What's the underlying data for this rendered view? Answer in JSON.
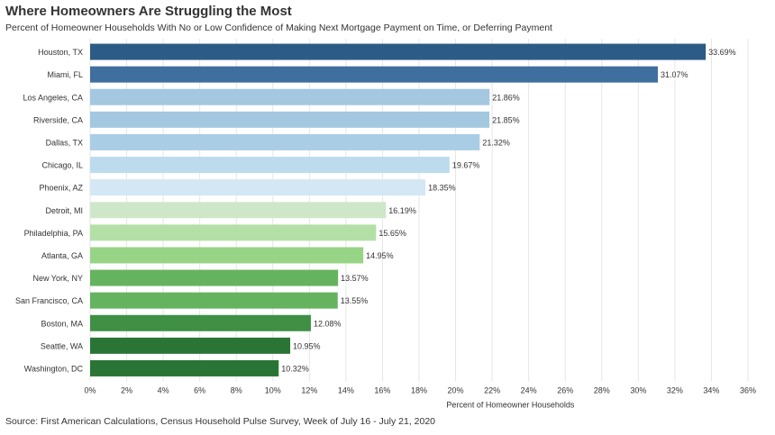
{
  "chart_data": {
    "type": "bar",
    "orientation": "horizontal",
    "title": "Where Homeowners Are Struggling the Most",
    "subtitle": "Percent of Homeowner Households With No or Low Confidence of Making Next Mortgage Payment on Time, or Deferring Payment",
    "xlabel": "Percent of Homeowner Households",
    "ylabel": "",
    "xlim": [
      0,
      36
    ],
    "x_ticks": [
      0,
      2,
      4,
      6,
      8,
      10,
      12,
      14,
      16,
      18,
      20,
      22,
      24,
      26,
      28,
      30,
      32,
      34,
      36
    ],
    "tick_suffix": "%",
    "grid": true,
    "categories": [
      "Houston, TX",
      "Miami, FL",
      "Los Angeles, CA",
      "Riverside, CA",
      "Dallas, TX",
      "Chicago, IL",
      "Phoenix, AZ",
      "Detroit, MI",
      "Philadelphia, PA",
      "Atlanta, GA",
      "New York, NY",
      "San Francisco, CA",
      "Boston, MA",
      "Seattle, WA",
      "Washington, DC"
    ],
    "values": [
      33.69,
      31.07,
      21.86,
      21.85,
      21.32,
      19.67,
      18.35,
      16.19,
      15.65,
      14.95,
      13.57,
      13.55,
      12.08,
      10.95,
      10.32
    ],
    "value_labels": [
      "33.69%",
      "31.07%",
      "21.86%",
      "21.85%",
      "21.32%",
      "19.67%",
      "18.35%",
      "16.19%",
      "15.65%",
      "14.95%",
      "13.57%",
      "13.55%",
      "12.08%",
      "10.95%",
      "10.32%"
    ],
    "colors": [
      "#2c5b85",
      "#3f6f9f",
      "#a3c8e0",
      "#a3c8e0",
      "#a9cde4",
      "#bcdcee",
      "#d3e7f5",
      "#cfe7c9",
      "#b3e0a6",
      "#98d486",
      "#66b35f",
      "#66b35f",
      "#3f8f45",
      "#2a7535",
      "#2a7535"
    ]
  },
  "source": "Source: First American Calculations, Census Household Pulse Survey, Week of July 16 - July 21, 2020"
}
